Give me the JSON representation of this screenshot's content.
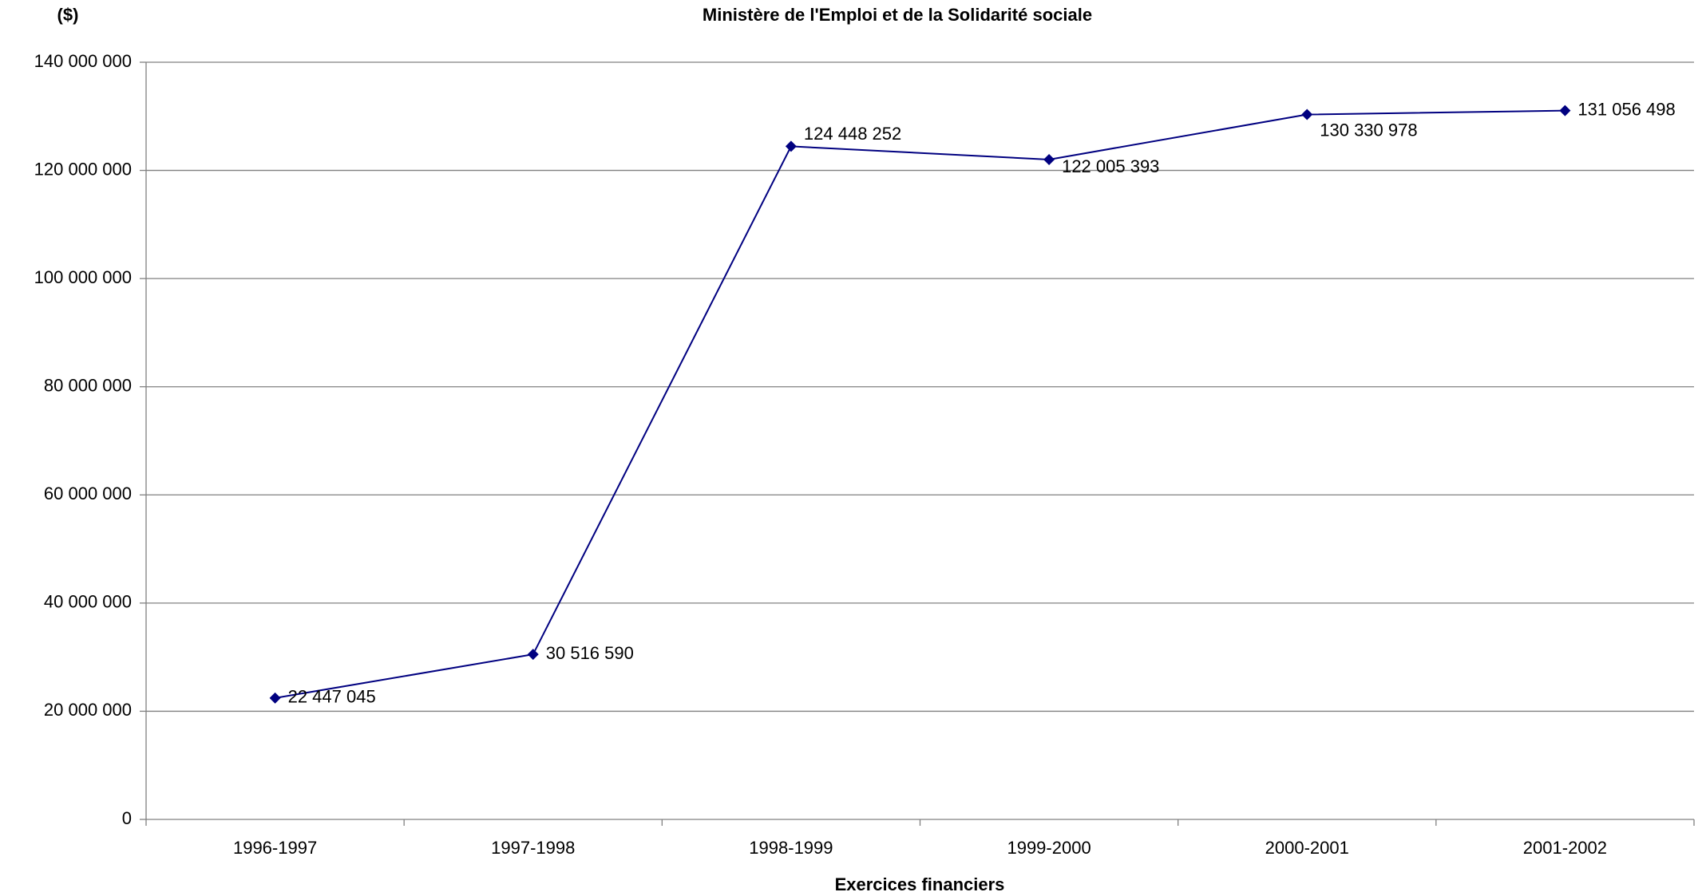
{
  "chart_data": {
    "type": "line",
    "title": "Ministère de l'Emploi et de la Solidarité sociale",
    "y_label": "($)",
    "x_label": "Exercices financiers",
    "categories": [
      "1996-1997",
      "1997-1998",
      "1998-1999",
      "1999-2000",
      "2000-2001",
      "2001-2002"
    ],
    "series": [
      {
        "color": "#000080",
        "values": [
          22447045,
          30516590,
          124448252,
          122005393,
          130330978,
          131056498
        ],
        "value_labels": [
          "22 447 045",
          "30 516 590",
          "124 448 252",
          "122 005 393",
          "130 330 978",
          "131 056 498"
        ]
      }
    ],
    "ylim": [
      0,
      140000000
    ],
    "yticks": [
      0,
      {
        "value": 20000000,
        "label": "20 000 000"
      },
      {
        "value": 40000000,
        "label": "40 000 000"
      },
      {
        "value": 60000000,
        "label": "60 000 000"
      },
      {
        "value": 80000000,
        "label": "80 000 000"
      },
      {
        "value": 100000000,
        "label": "100 000 000"
      },
      {
        "value": 120000000,
        "label": "120 000 000"
      },
      {
        "value": 140000000,
        "label": "140 000 000"
      }
    ],
    "grid": true
  }
}
